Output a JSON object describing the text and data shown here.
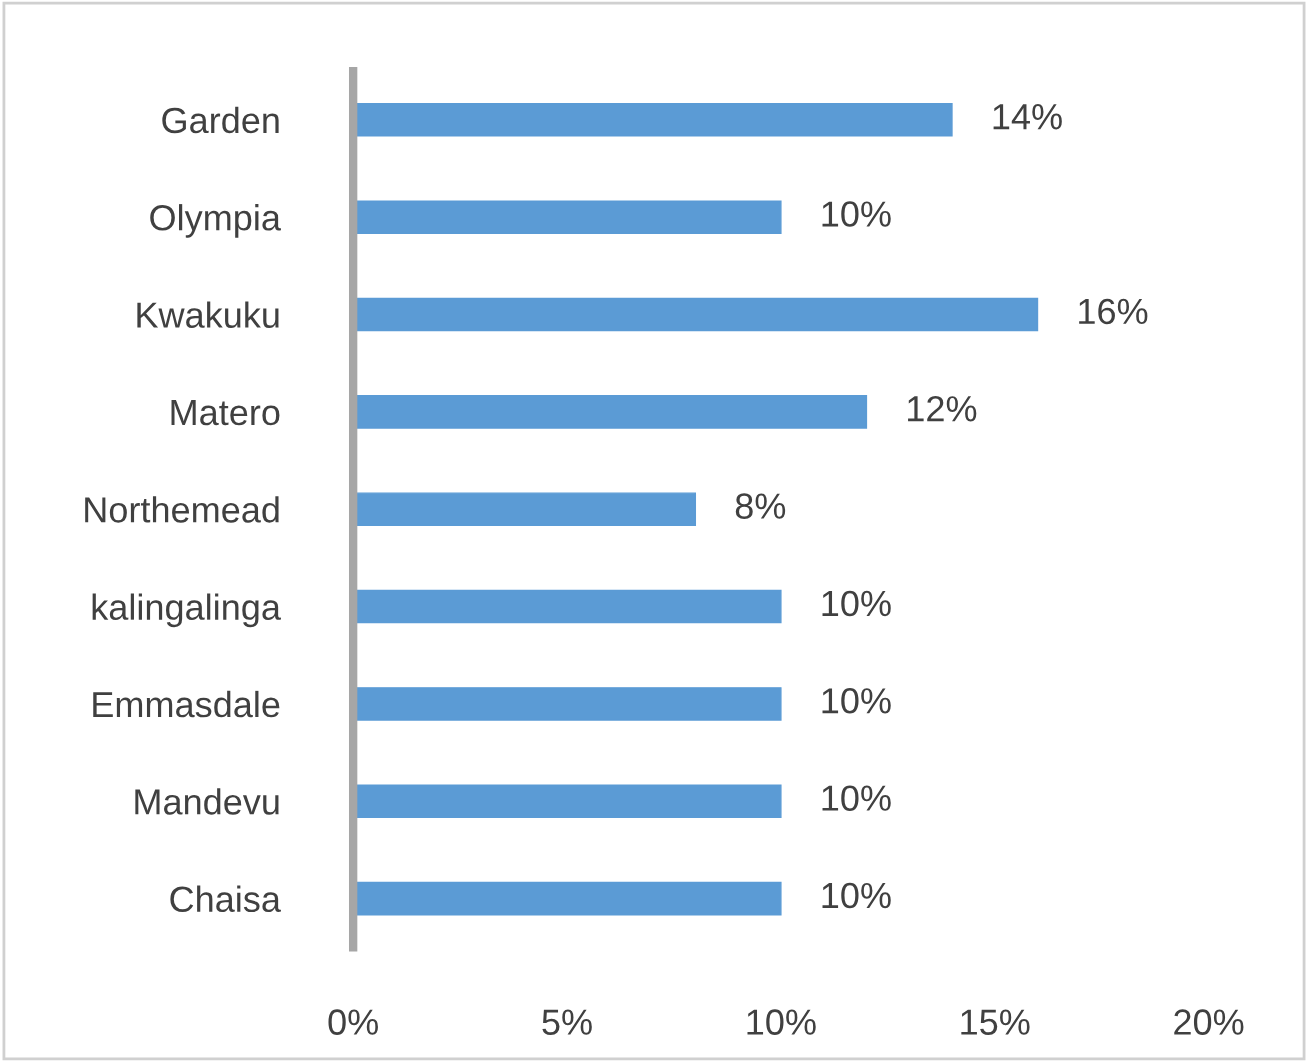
{
  "chart_data": {
    "type": "bar",
    "orientation": "horizontal",
    "categories": [
      "Garden",
      "Olympia",
      "Kwakuku",
      "Matero",
      "Northemead",
      "kalingalinga",
      "Emmasdale",
      "Mandevu",
      "Chaisa"
    ],
    "values": [
      14,
      10,
      16,
      12,
      8,
      10,
      10,
      10,
      10
    ],
    "value_labels": [
      "14%",
      "10%",
      "16%",
      "12%",
      "8%",
      "10%",
      "10%",
      "10%",
      "10%"
    ],
    "color": "#5b9bd5",
    "xlim": [
      0,
      20
    ],
    "xticks": [
      {
        "value": 0,
        "label": "0%"
      },
      {
        "value": 5,
        "label": "5%"
      },
      {
        "value": 10,
        "label": "10%"
      },
      {
        "value": 15,
        "label": "15%"
      },
      {
        "value": 20,
        "label": "20%"
      }
    ],
    "grid": false
  }
}
